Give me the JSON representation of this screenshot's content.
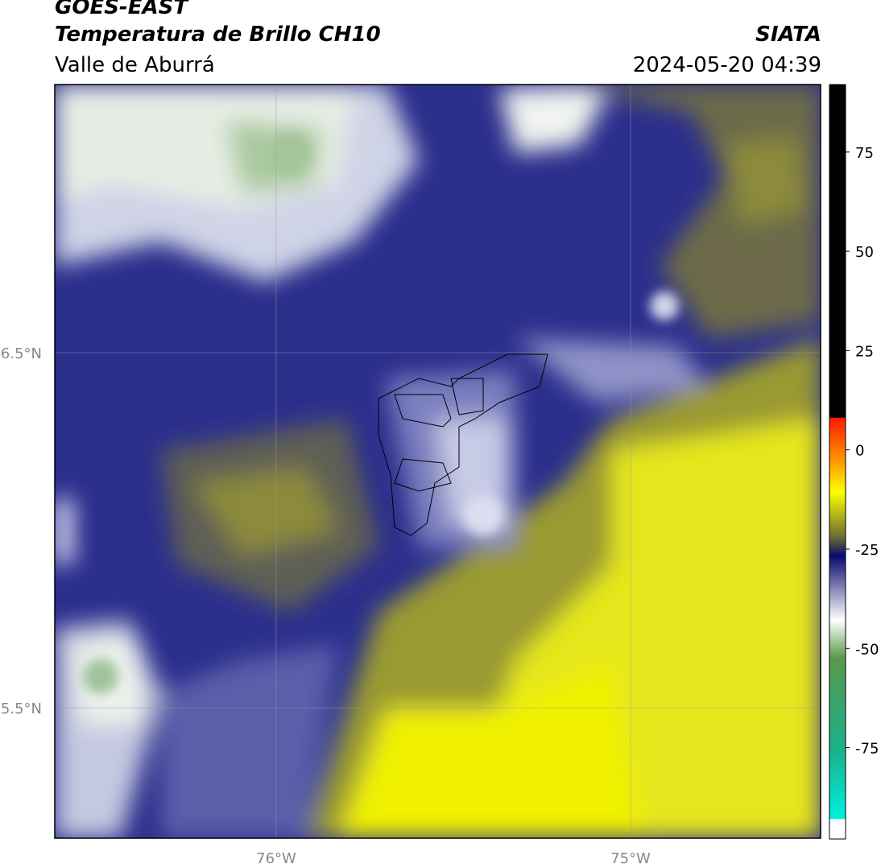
{
  "header": {
    "satellite": "GOES-EAST",
    "product": "Temperatura de Brillo CH10",
    "region": "Valle de Aburrá",
    "organization": "SIATA",
    "datetime": "2024-05-20 04:39"
  },
  "map": {
    "lat_labels": [
      "6.5°N",
      "5.5°N"
    ],
    "lon_labels": [
      "76°W",
      "75°W"
    ]
  },
  "colorbar": {
    "lim": [
      -98,
      92
    ],
    "ticks": [
      75,
      50,
      25,
      0,
      -25,
      -50,
      -75
    ]
  }
}
